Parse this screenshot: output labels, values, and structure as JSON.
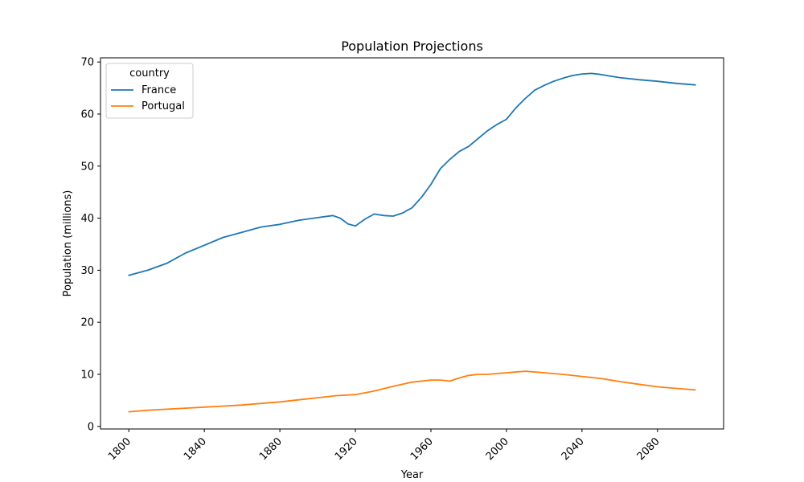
{
  "chart_data": {
    "type": "line",
    "title": "Population Projections",
    "xlabel": "Year",
    "ylabel": "Population (millions)",
    "xlim": [
      1785,
      2115
    ],
    "ylim": [
      -0.5,
      70.8
    ],
    "xticks": [
      1800,
      1840,
      1880,
      1920,
      1960,
      2000,
      2040,
      2080
    ],
    "yticks": [
      0,
      10,
      20,
      30,
      40,
      50,
      60,
      70
    ],
    "grid": false,
    "legend": {
      "title": "country",
      "placement": "top-left"
    },
    "series": [
      {
        "name": "France",
        "color": "#1f77b4",
        "points": [
          [
            1800,
            29.0
          ],
          [
            1810,
            30.0
          ],
          [
            1820,
            31.3
          ],
          [
            1830,
            33.3
          ],
          [
            1840,
            34.8
          ],
          [
            1850,
            36.3
          ],
          [
            1860,
            37.3
          ],
          [
            1870,
            38.3
          ],
          [
            1880,
            38.8
          ],
          [
            1890,
            39.6
          ],
          [
            1900,
            40.1
          ],
          [
            1908,
            40.5
          ],
          [
            1912,
            40.0
          ],
          [
            1916,
            38.9
          ],
          [
            1920,
            38.5
          ],
          [
            1925,
            39.8
          ],
          [
            1930,
            40.8
          ],
          [
            1935,
            40.5
          ],
          [
            1940,
            40.4
          ],
          [
            1945,
            41.0
          ],
          [
            1950,
            42.0
          ],
          [
            1955,
            44.0
          ],
          [
            1960,
            46.5
          ],
          [
            1965,
            49.5
          ],
          [
            1970,
            51.3
          ],
          [
            1975,
            52.8
          ],
          [
            1980,
            53.8
          ],
          [
            1985,
            55.3
          ],
          [
            1990,
            56.8
          ],
          [
            1995,
            58.0
          ],
          [
            2000,
            59.0
          ],
          [
            2005,
            61.2
          ],
          [
            2010,
            63.0
          ],
          [
            2015,
            64.6
          ],
          [
            2020,
            65.5
          ],
          [
            2025,
            66.3
          ],
          [
            2030,
            66.9
          ],
          [
            2035,
            67.4
          ],
          [
            2040,
            67.7
          ],
          [
            2045,
            67.8
          ],
          [
            2050,
            67.6
          ],
          [
            2055,
            67.3
          ],
          [
            2060,
            67.0
          ],
          [
            2070,
            66.6
          ],
          [
            2080,
            66.3
          ],
          [
            2090,
            65.9
          ],
          [
            2100,
            65.6
          ]
        ]
      },
      {
        "name": "Portugal",
        "color": "#ff7f0e",
        "points": [
          [
            1800,
            2.8
          ],
          [
            1810,
            3.1
          ],
          [
            1820,
            3.3
          ],
          [
            1830,
            3.5
          ],
          [
            1840,
            3.7
          ],
          [
            1850,
            3.9
          ],
          [
            1860,
            4.1
          ],
          [
            1870,
            4.4
          ],
          [
            1880,
            4.7
          ],
          [
            1890,
            5.1
          ],
          [
            1900,
            5.5
          ],
          [
            1910,
            5.9
          ],
          [
            1920,
            6.1
          ],
          [
            1930,
            6.8
          ],
          [
            1940,
            7.7
          ],
          [
            1950,
            8.5
          ],
          [
            1960,
            8.9
          ],
          [
            1965,
            8.9
          ],
          [
            1970,
            8.7
          ],
          [
            1975,
            9.3
          ],
          [
            1980,
            9.8
          ],
          [
            1985,
            10.0
          ],
          [
            1990,
            10.0
          ],
          [
            2000,
            10.3
          ],
          [
            2010,
            10.6
          ],
          [
            2020,
            10.3
          ],
          [
            2030,
            10.0
          ],
          [
            2040,
            9.6
          ],
          [
            2050,
            9.2
          ],
          [
            2060,
            8.6
          ],
          [
            2070,
            8.1
          ],
          [
            2080,
            7.6
          ],
          [
            2090,
            7.3
          ],
          [
            2100,
            7.0
          ]
        ]
      }
    ]
  }
}
